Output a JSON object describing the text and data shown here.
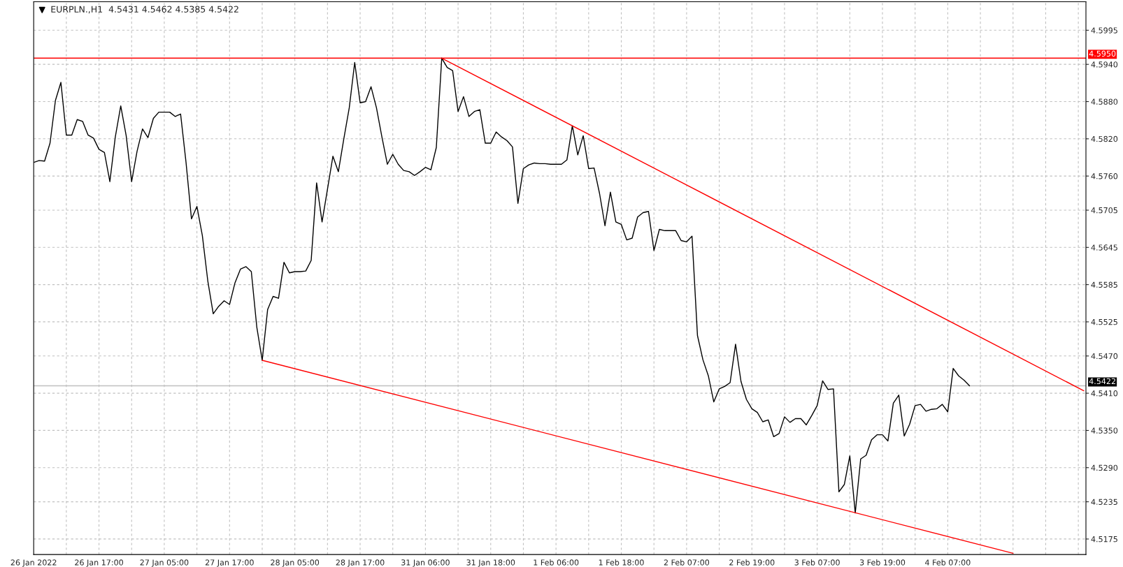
{
  "chart_data": {
    "type": "line",
    "title": "EURPLN.,H1  4.5431 4.5462 4.5385 4.5422",
    "categories": [
      "26 Jan 2022",
      null,
      null,
      null,
      null,
      null,
      null,
      null,
      null,
      null,
      null,
      null,
      "26 Jan 17:00",
      null,
      null,
      null,
      null,
      null,
      null,
      null,
      null,
      null,
      null,
      null,
      "27 Jan 05:00",
      null,
      null,
      null,
      null,
      null,
      null,
      null,
      null,
      null,
      null,
      null,
      "27 Jan 17:00",
      null,
      null,
      null,
      null,
      null,
      null,
      null,
      null,
      null,
      null,
      null,
      "28 Jan 05:00",
      null,
      null,
      null,
      null,
      null,
      null,
      null,
      null,
      null,
      null,
      null,
      "28 Jan 17:00",
      null,
      null,
      null,
      null,
      null,
      null,
      null,
      null,
      null,
      null,
      null,
      "31 Jan 06:00",
      null,
      null,
      null,
      null,
      null,
      null,
      null,
      null,
      null,
      null,
      null,
      "31 Jan 18:00",
      null,
      null,
      null,
      null,
      null,
      null,
      null,
      null,
      null,
      null,
      null,
      "1 Feb 06:00",
      null,
      null,
      null,
      null,
      null,
      null,
      null,
      null,
      null,
      null,
      null,
      "1 Feb 18:00",
      null,
      null,
      null,
      null,
      null,
      null,
      null,
      null,
      null,
      null,
      null,
      "2 Feb 07:00",
      null,
      null,
      null,
      null,
      null,
      null,
      null,
      null,
      null,
      null,
      null,
      "2 Feb 19:00",
      null,
      null,
      null,
      null,
      null,
      null,
      null,
      null,
      null,
      null,
      null,
      "3 Feb 07:00",
      null,
      null,
      null,
      null,
      null,
      null,
      null,
      null,
      null,
      null,
      null,
      "3 Feb 19:00",
      null,
      null,
      null,
      null,
      null,
      null,
      null,
      null,
      null,
      null,
      null,
      "4 Feb 07:00",
      null,
      null,
      null,
      null,
      null,
      null,
      null,
      null,
      null,
      null,
      null,
      null,
      null,
      null,
      null,
      null,
      null,
      null,
      null,
      null,
      null,
      null,
      null,
      null,
      null
    ],
    "series": [
      {
        "color": "#000000",
        "values": [
          4.5782,
          4.5785,
          4.5784,
          4.5813,
          4.5882,
          4.5911,
          4.5826,
          4.5826,
          4.5851,
          4.5848,
          4.5826,
          4.5821,
          4.5803,
          4.5798,
          4.5751,
          4.5823,
          4.5873,
          4.5825,
          4.5751,
          4.58,
          4.5836,
          4.5822,
          4.5853,
          4.5863,
          4.5863,
          4.5863,
          4.5856,
          4.586,
          4.5782,
          4.5691,
          4.5711,
          4.5664,
          4.5591,
          4.5538,
          4.555,
          4.5559,
          4.5553,
          4.5588,
          4.561,
          4.5614,
          4.5606,
          4.5517,
          4.5463,
          4.5545,
          4.5566,
          4.5563,
          4.5621,
          4.5604,
          4.5606,
          4.5606,
          4.5607,
          4.5624,
          4.5749,
          4.5686,
          4.5739,
          4.5792,
          4.5767,
          4.582,
          4.587,
          4.5943,
          4.5878,
          4.588,
          4.5904,
          4.587,
          4.5823,
          4.5779,
          4.5795,
          4.5779,
          4.5769,
          4.5767,
          4.5761,
          4.5767,
          4.5774,
          4.577,
          4.5806,
          4.595,
          4.5935,
          4.593,
          4.5864,
          4.5888,
          4.5856,
          4.5864,
          4.5867,
          4.5813,
          4.5813,
          4.5831,
          4.5823,
          4.5817,
          4.5807,
          4.5716,
          4.5772,
          4.5778,
          4.5781,
          4.578,
          4.578,
          4.5779,
          4.5779,
          4.5779,
          4.5786,
          4.5841,
          4.5794,
          4.5825,
          4.5772,
          4.5773,
          4.5732,
          4.568,
          4.5734,
          4.5686,
          4.5682,
          4.5657,
          4.566,
          4.5694,
          4.5701,
          4.5703,
          4.564,
          4.5674,
          4.5672,
          4.5672,
          4.5672,
          4.5656,
          4.5654,
          4.5663,
          4.5503,
          4.5464,
          4.5438,
          4.5396,
          4.5417,
          4.5421,
          4.5427,
          4.5489,
          4.5429,
          4.54,
          4.5385,
          4.5379,
          4.5364,
          4.5367,
          4.534,
          4.5345,
          4.5372,
          4.5363,
          4.5369,
          4.5369,
          4.5359,
          4.5374,
          4.539,
          4.543,
          4.5416,
          4.5417,
          4.5251,
          4.5263,
          4.5309,
          4.5217,
          4.5304,
          4.531,
          4.5335,
          4.5343,
          4.5343,
          4.5333,
          4.5394,
          4.5407,
          4.5341,
          4.536,
          4.539,
          4.5392,
          4.5381,
          4.5384,
          4.5385,
          4.5392,
          4.538,
          4.545,
          4.5438,
          4.5431,
          4.5422,
          null,
          null,
          null,
          null,
          null,
          null,
          null,
          null,
          null,
          null,
          null,
          null,
          null,
          null,
          null,
          null,
          null,
          null,
          null,
          null,
          null
        ]
      },
      {
        "color": "#ff0000",
        "values": [
          null,
          null,
          null,
          null,
          null,
          null,
          null,
          null,
          null,
          null,
          null,
          null,
          null,
          null,
          null,
          null,
          null,
          null,
          null,
          null,
          null,
          null,
          null,
          null,
          null,
          null,
          null,
          null,
          null,
          null,
          null,
          null,
          null,
          null,
          null,
          null,
          null,
          null,
          null,
          null,
          null,
          null,
          null,
          null,
          null,
          null,
          null,
          null,
          null,
          null,
          null,
          null,
          null,
          null,
          null,
          null,
          null,
          null,
          null,
          null,
          null,
          null,
          null,
          null,
          null,
          null,
          null,
          null,
          null,
          null,
          null,
          null,
          null,
          null,
          null,
          4.595,
          null,
          null,
          null,
          null,
          null,
          null,
          null,
          null,
          null,
          null,
          null,
          null,
          null,
          null,
          null,
          null,
          null,
          null,
          null,
          null,
          null,
          null,
          null,
          null,
          null,
          null,
          null,
          null,
          null,
          null,
          null,
          null,
          null,
          null,
          null,
          null,
          null,
          null,
          null,
          null,
          null,
          null,
          null,
          null,
          null,
          null,
          null,
          null,
          null,
          null,
          null,
          null,
          null,
          null,
          null,
          null,
          null,
          null,
          null,
          null,
          null,
          null,
          null,
          null,
          null,
          null,
          null,
          null,
          null,
          null,
          null,
          null,
          null,
          null,
          null,
          null,
          null,
          null,
          null,
          null,
          null,
          null,
          null,
          null,
          null,
          null,
          null,
          null,
          null,
          null,
          null,
          null,
          null,
          null,
          null,
          null,
          null,
          null,
          null,
          null,
          null,
          null,
          null,
          null,
          null,
          null,
          null,
          null,
          null,
          null,
          null,
          null,
          null,
          null,
          null,
          null,
          null,
          4.5414
        ]
      },
      {
        "color": "#ff0000",
        "values": [
          null,
          null,
          null,
          null,
          null,
          null,
          null,
          null,
          null,
          null,
          null,
          null,
          null,
          null,
          null,
          null,
          null,
          null,
          null,
          null,
          null,
          null,
          null,
          null,
          null,
          null,
          null,
          null,
          null,
          null,
          null,
          null,
          null,
          null,
          null,
          null,
          null,
          null,
          null,
          null,
          null,
          null,
          4.5463,
          null,
          null,
          null,
          null,
          null,
          null,
          null,
          null,
          null,
          null,
          null,
          null,
          null,
          null,
          null,
          null,
          null,
          null,
          null,
          null,
          null,
          null,
          null,
          null,
          null,
          null,
          null,
          null,
          null,
          null,
          null,
          null,
          null,
          null,
          null,
          null,
          null,
          null,
          null,
          null,
          null,
          null,
          null,
          null,
          null,
          null,
          null,
          null,
          null,
          null,
          null,
          null,
          null,
          null,
          null,
          null,
          null,
          null,
          null,
          null,
          null,
          null,
          null,
          null,
          null,
          null,
          null,
          null,
          null,
          null,
          null,
          null,
          null,
          null,
          null,
          null,
          null,
          null,
          null,
          null,
          null,
          null,
          null,
          null,
          null,
          null,
          null,
          null,
          null,
          null,
          null,
          null,
          null,
          null,
          null,
          null,
          null,
          null,
          null,
          null,
          null,
          null,
          null,
          null,
          null,
          null,
          null,
          null,
          null,
          null,
          null,
          null,
          null,
          null,
          null,
          null,
          null,
          null,
          null,
          null,
          null,
          null,
          null,
          null,
          null,
          null,
          null,
          null,
          null,
          null,
          null,
          null,
          null,
          null,
          null,
          null,
          null,
          4.5152,
          null,
          null,
          null,
          null,
          null,
          null,
          null,
          null,
          null,
          null,
          null,
          null,
          null
        ]
      }
    ],
    "ref_lines": [
      {
        "axis": "y",
        "value": 4.595,
        "label": "4.5950",
        "color": "#ff0000"
      },
      {
        "axis": "y",
        "value": 4.5422,
        "label": "4.5422",
        "color": "#c0c0c0"
      }
    ],
    "ylim": [
      4.515,
      4.6041
    ],
    "yticks": [
      4.5995,
      {
        "value": 4.594,
        "label": "4.5940"
      },
      {
        "value": 4.588,
        "label": "4.5880"
      },
      {
        "value": 4.582,
        "label": "4.5820"
      },
      {
        "value": 4.576,
        "label": "4.5760"
      },
      4.5705,
      4.5645,
      4.5585,
      4.5525,
      {
        "value": 4.547,
        "label": "4.5470"
      },
      {
        "value": 4.541,
        "label": "4.5410"
      },
      {
        "value": 4.535,
        "label": "4.5350"
      },
      {
        "value": 4.529,
        "label": "4.5290"
      },
      4.5235,
      4.5175
    ],
    "grid": true,
    "marker": "none",
    "line_style": "solid"
  }
}
